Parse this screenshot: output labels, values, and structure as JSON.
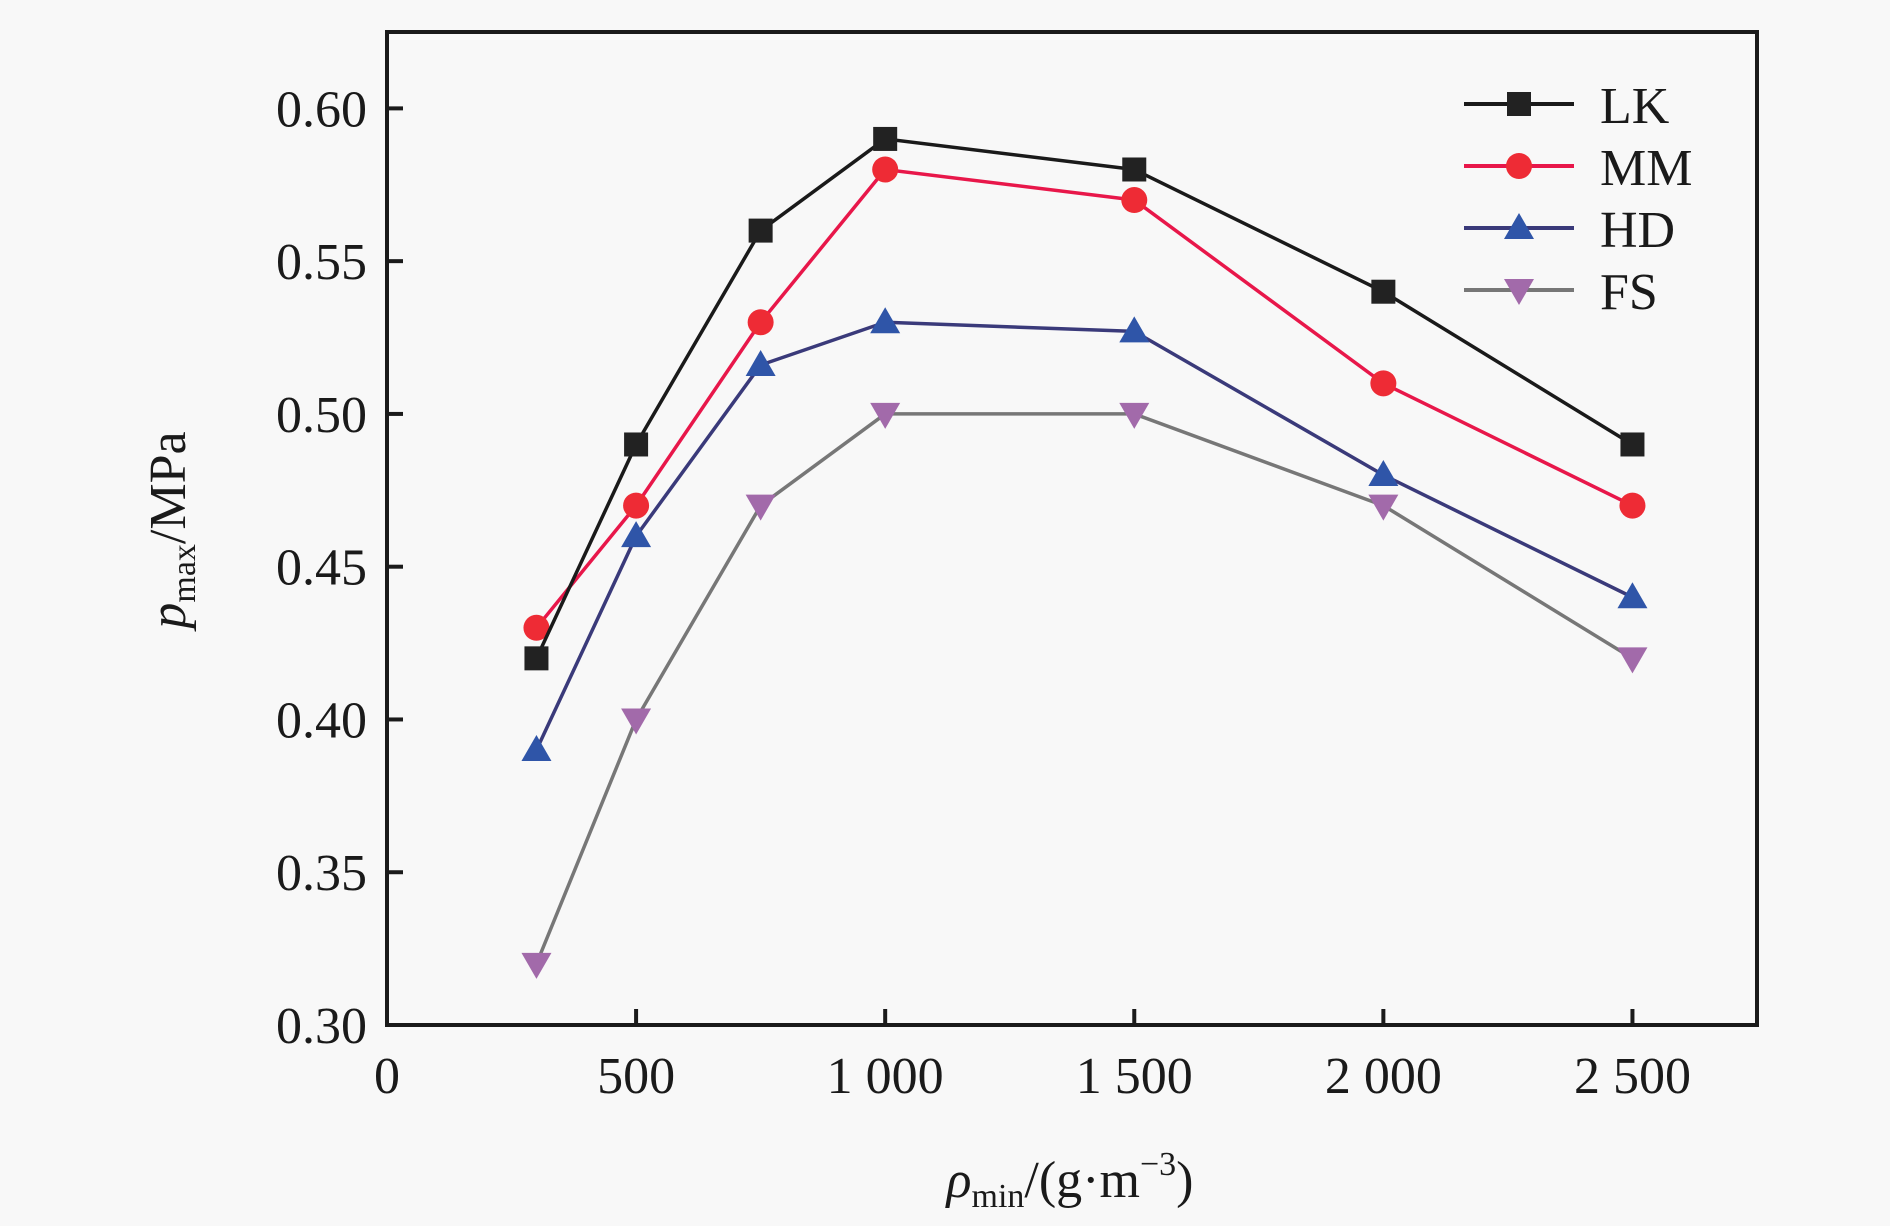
{
  "chart_data": {
    "type": "line",
    "title": "",
    "xlabel": {
      "main": "ρ",
      "sub": "min",
      "rest": "/(g·m",
      "sup": "−3",
      "close": ")"
    },
    "ylabel": {
      "main": "p",
      "sub": "max",
      "rest": "/MPa"
    },
    "xlim": [
      0,
      2750
    ],
    "ylim": [
      0.3,
      0.625
    ],
    "xticks": [
      0,
      500,
      1000,
      1500,
      2000,
      2500
    ],
    "xtick_labels": [
      "0",
      "500",
      "1 000",
      "1 500",
      "2 000",
      "2 500"
    ],
    "yticks": [
      0.3,
      0.35,
      0.4,
      0.45,
      0.5,
      0.55,
      0.6
    ],
    "ytick_labels": [
      "0.30",
      "0.35",
      "0.40",
      "0.45",
      "0.50",
      "0.55",
      "0.60"
    ],
    "grid": false,
    "legend_position": "top-right",
    "x": [
      300,
      500,
      750,
      1000,
      1500,
      2000,
      2500
    ],
    "series": [
      {
        "name": "LK",
        "marker": "square",
        "line_color": "#1a1a1a",
        "marker_color": "#222222",
        "values": [
          0.42,
          0.49,
          0.56,
          0.59,
          0.58,
          0.54,
          0.49
        ]
      },
      {
        "name": "MM",
        "marker": "circle",
        "line_color": "#e8174a",
        "marker_color": "#ee2b35",
        "values": [
          0.43,
          0.47,
          0.53,
          0.58,
          0.57,
          0.51,
          0.47
        ]
      },
      {
        "name": "HD",
        "marker": "triangle-up",
        "line_color": "#3a3a7a",
        "marker_color": "#2f55a8",
        "values": [
          0.39,
          0.46,
          0.516,
          0.53,
          0.527,
          0.48,
          0.44
        ]
      },
      {
        "name": "FS",
        "marker": "triangle-down",
        "line_color": "#777777",
        "marker_color": "#a26aaa",
        "values": [
          0.32,
          0.4,
          0.47,
          0.5,
          0.5,
          0.47,
          0.42
        ]
      }
    ]
  }
}
